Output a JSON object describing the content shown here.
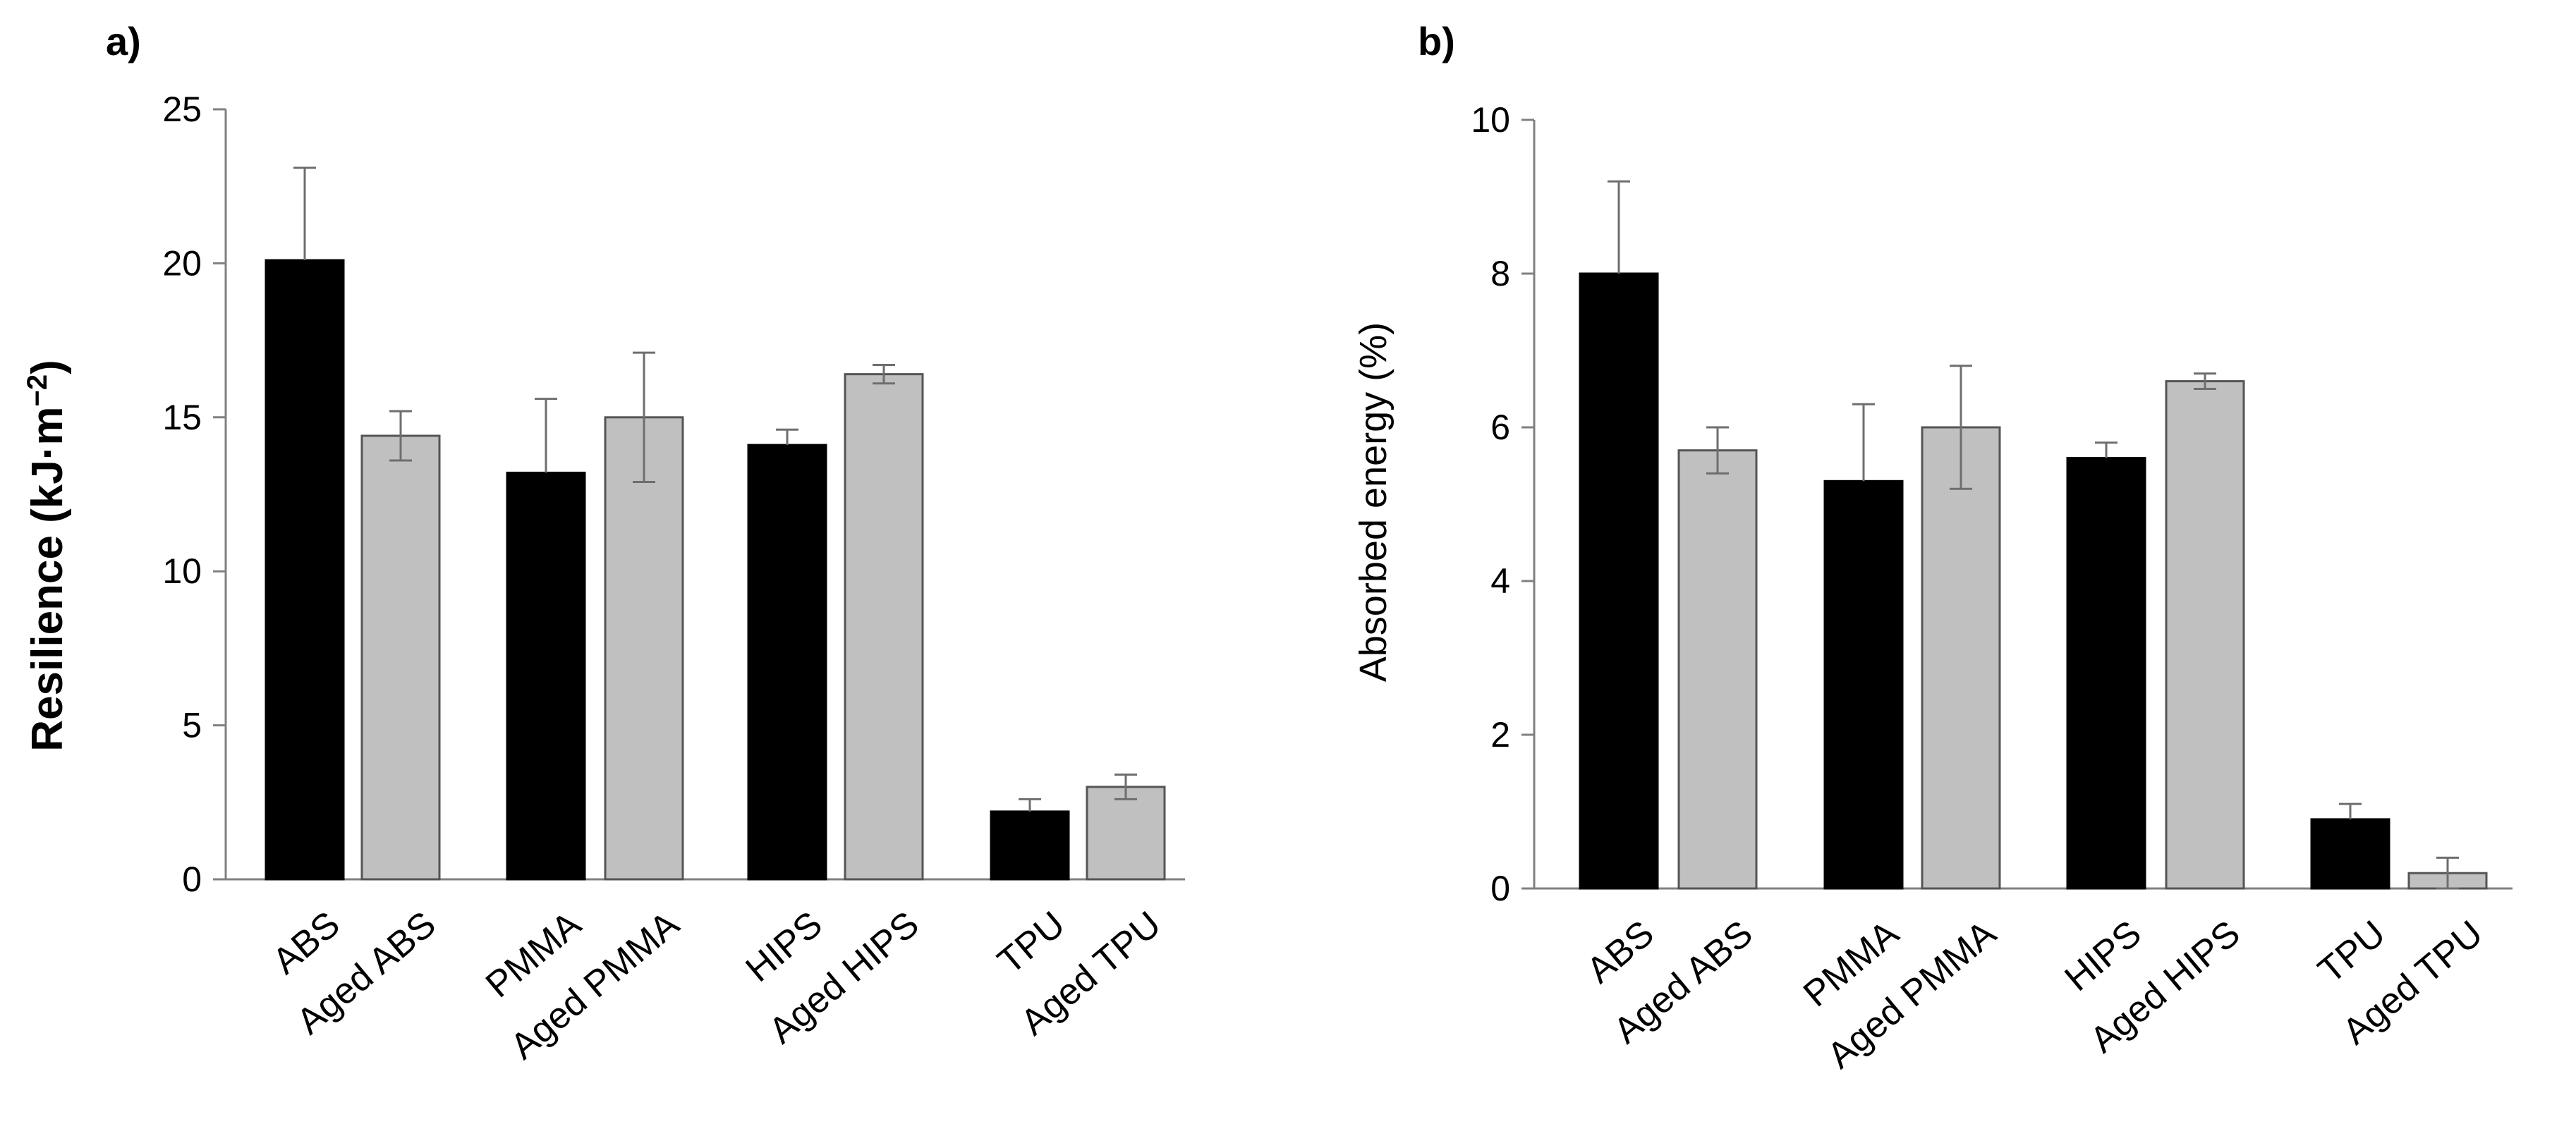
{
  "chart_data": [
    {
      "type": "bar",
      "panel_label": "a)",
      "title": "",
      "xlabel": "",
      "ylabel": "Resilience (kJ·m",
      "ylabel_superscript": "−2",
      "ylabel_suffix": ")",
      "ylim": [
        0,
        25
      ],
      "yticks": [
        0,
        5,
        10,
        15,
        20,
        25
      ],
      "grid": false,
      "categories": [
        "ABS",
        "Aged ABS",
        "PMMA",
        "Aged PMMA",
        "HIPS",
        "Aged HIPS",
        "TPU",
        "Aged TPU"
      ],
      "values": [
        20.1,
        14.4,
        13.2,
        15.0,
        14.1,
        16.4,
        2.2,
        3.0
      ],
      "errors": [
        3.0,
        0.8,
        2.4,
        2.1,
        0.5,
        0.3,
        0.4,
        0.4
      ],
      "colors": [
        "#000000",
        "#c0c0c0",
        "#000000",
        "#c0c0c0",
        "#000000",
        "#c0c0c0",
        "#000000",
        "#c0c0c0"
      ]
    },
    {
      "type": "bar",
      "panel_label": "b)",
      "title": "",
      "xlabel": "",
      "ylabel": "Absorbed energy (%)",
      "ylim": [
        0,
        10
      ],
      "yticks": [
        0,
        2,
        4,
        6,
        8,
        10
      ],
      "grid": false,
      "categories": [
        "ABS",
        "Aged ABS",
        "PMMA",
        "Aged PMMA",
        "HIPS",
        "Aged HIPS",
        "TPU",
        "Aged TPU"
      ],
      "values": [
        8.0,
        5.7,
        5.3,
        6.0,
        5.6,
        6.6,
        0.9,
        0.2
      ],
      "errors": [
        1.2,
        0.3,
        1.0,
        0.8,
        0.2,
        0.1,
        0.2,
        0.2
      ],
      "colors": [
        "#000000",
        "#c0c0c0",
        "#000000",
        "#c0c0c0",
        "#000000",
        "#c0c0c0",
        "#000000",
        "#c0c0c0"
      ]
    }
  ]
}
